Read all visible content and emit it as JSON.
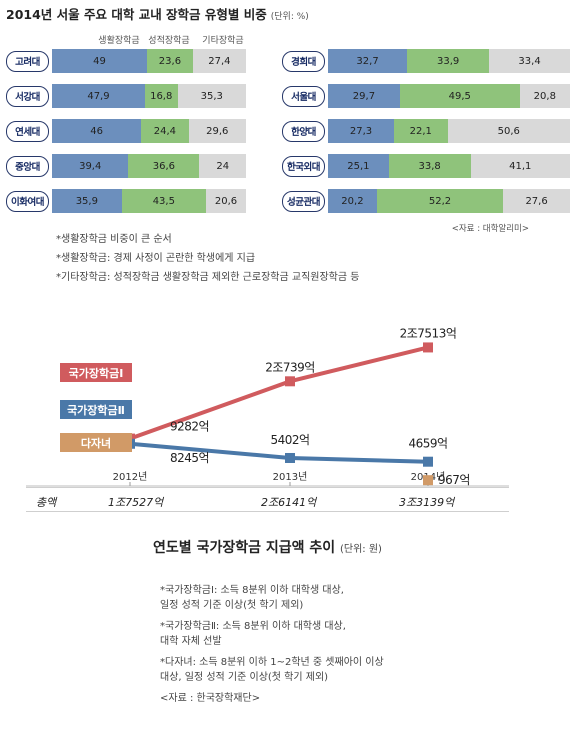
{
  "header": {
    "title": "2014년 서울 주요 대학 교내 장학금 유형별 비중",
    "unit": "(단위: %)"
  },
  "legend": [
    "생활장학금",
    "성적장학금",
    "기타장학금"
  ],
  "colors": {
    "living": "#6c8fbd",
    "merit": "#8fc37b",
    "other": "#d9d9d9",
    "grant1": "#d05b5e",
    "grant2": "#4a78a8",
    "multichild": "#d19a67",
    "badge_border": "#27386a"
  },
  "universities_left": [
    {
      "name": "고려대",
      "values": [
        "49",
        "23.6",
        "27.4"
      ]
    },
    {
      "name": "서강대",
      "values": [
        "47.9",
        "16.8",
        "35.3"
      ]
    },
    {
      "name": "연세대",
      "values": [
        "46",
        "24.4",
        "29.6"
      ]
    },
    {
      "name": "중앙대",
      "values": [
        "39.4",
        "36.6",
        "24"
      ]
    },
    {
      "name": "이화여대",
      "values": [
        "35.9",
        "43.5",
        "20.6"
      ]
    }
  ],
  "universities_right": [
    {
      "name": "경희대",
      "values": [
        "32.7",
        "33.9",
        "33.4"
      ]
    },
    {
      "name": "서울대",
      "values": [
        "29.7",
        "49.5",
        "20.8"
      ]
    },
    {
      "name": "한양대",
      "values": [
        "27.3",
        "22.1",
        "50.6"
      ]
    },
    {
      "name": "한국외대",
      "values": [
        "25.1",
        "33.8",
        "41.1"
      ]
    },
    {
      "name": "성균관대",
      "values": [
        "20.2",
        "52.2",
        "27.6"
      ]
    }
  ],
  "source1": "<자료 : 대학알리미>",
  "notes1": [
    "*생활장학금 비중이 큰 순서",
    "*생활장학금: 경제 사정이 곤란한 학생에게 지급",
    "*기타장학금: 성적장학금 생활장학금 제외한 근로장학금 교직원장학금 등"
  ],
  "chart_data": {
    "type": "line",
    "title": "연도별 국가장학금 지급액 추이",
    "unit": "(단위: 원)",
    "categories": [
      "2012년",
      "2013년",
      "2014년"
    ],
    "series": [
      {
        "name": "국가장학금Ⅰ",
        "values": [
          928200000000,
          2073900000000,
          2751300000000
        ],
        "labels": [
          "9282억",
          "2조739억",
          "2조7513억"
        ]
      },
      {
        "name": "국가장학금Ⅱ",
        "values": [
          824500000000,
          540200000000,
          465900000000
        ],
        "labels": [
          "8245억",
          "5402억",
          "4659억"
        ]
      },
      {
        "name": "다자녀",
        "values": [
          null,
          null,
          96700000000
        ],
        "labels": [
          "",
          "",
          "967억"
        ]
      }
    ],
    "totals_label": "총액",
    "totals": [
      "1조7527억",
      "2조6141억",
      "3조3139억"
    ]
  },
  "notes2": [
    [
      "*국가장학금Ⅰ: 소득 8분위 이하 대학생 대상,",
      "일정 성적 기준 이상(첫 학기 제외)"
    ],
    [
      "*국가장학금Ⅱ: 소득 8분위 이하 대학생 대상,",
      "대학 자체 선발"
    ],
    [
      "*다자녀: 소득 8분위 이하 1~2학년 중 셋째아이 이상",
      "대상, 일정 성적 기준 이상(첫 학기 제외)"
    ]
  ],
  "source2": "<자료 : 한국장학재단>"
}
